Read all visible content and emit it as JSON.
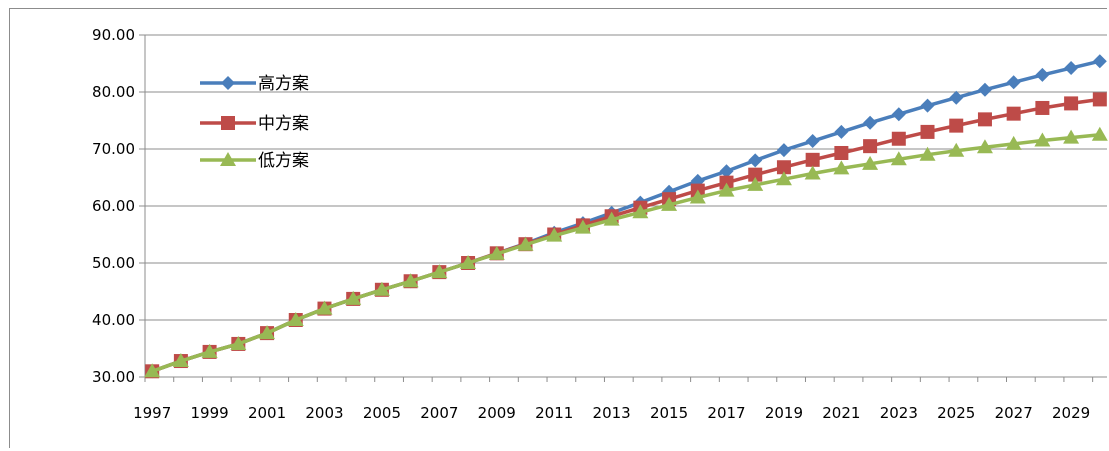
{
  "chart_data": {
    "type": "line",
    "title": "",
    "xlabel": "",
    "ylabel": "",
    "ylim": [
      30,
      90
    ],
    "yticks": [
      "30.00",
      "40.00",
      "50.00",
      "60.00",
      "70.00",
      "80.00",
      "90.00"
    ],
    "grid": "horizontal",
    "legend_position": "top-left",
    "x": [
      1997,
      1998,
      1999,
      2000,
      2001,
      2002,
      2003,
      2004,
      2005,
      2006,
      2007,
      2008,
      2009,
      2010,
      2011,
      2012,
      2013,
      2014,
      2015,
      2016,
      2017,
      2018,
      2019,
      2020,
      2021,
      2022,
      2023,
      2024,
      2025,
      2026,
      2027,
      2028,
      2029,
      2030
    ],
    "xtick_labels": [
      "1997",
      "1999",
      "2001",
      "2003",
      "2005",
      "2007",
      "2009",
      "2011",
      "2013",
      "2015",
      "2017",
      "2019",
      "2021",
      "2023",
      "2025",
      "2027",
      "2029"
    ],
    "series": [
      {
        "name": "高方案",
        "color": "#4a7ebb",
        "marker": "diamond",
        "values": [
          31.0,
          32.8,
          34.4,
          35.8,
          37.7,
          40.0,
          42.0,
          43.7,
          45.3,
          46.8,
          48.4,
          50.0,
          51.7,
          53.4,
          55.3,
          57.0,
          58.8,
          60.6,
          62.5,
          64.4,
          66.1,
          68.0,
          69.8,
          71.4,
          73.0,
          74.6,
          76.1,
          77.6,
          79.0,
          80.4,
          81.7,
          83.0,
          84.2,
          85.4
        ]
      },
      {
        "name": "中方案",
        "color": "#be4b48",
        "marker": "square",
        "values": [
          31.0,
          32.8,
          34.4,
          35.8,
          37.7,
          40.0,
          42.0,
          43.7,
          45.3,
          46.8,
          48.4,
          50.0,
          51.7,
          53.3,
          55.0,
          56.6,
          58.2,
          59.7,
          61.2,
          62.7,
          64.1,
          65.5,
          66.8,
          68.1,
          69.3,
          70.5,
          71.8,
          73.0,
          74.1,
          75.2,
          76.2,
          77.2,
          78.0,
          78.7
        ]
      },
      {
        "name": "低方案",
        "color": "#98b954",
        "marker": "triangle",
        "values": [
          31.0,
          32.8,
          34.4,
          35.8,
          37.7,
          40.0,
          42.0,
          43.7,
          45.3,
          46.8,
          48.4,
          50.0,
          51.6,
          53.2,
          54.8,
          56.2,
          57.6,
          58.9,
          60.2,
          61.5,
          62.7,
          63.7,
          64.7,
          65.7,
          66.6,
          67.4,
          68.2,
          69.0,
          69.7,
          70.3,
          70.9,
          71.5,
          72.0,
          72.5
        ]
      }
    ]
  }
}
